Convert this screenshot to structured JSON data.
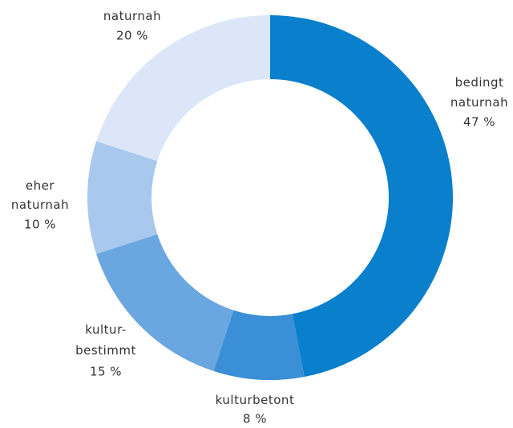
{
  "chart_data": {
    "type": "pie",
    "donut": true,
    "categories": [
      "bedingt naturnah",
      "kulturbetont",
      "kultur-bestimmt",
      "eher naturnah",
      "naturnah"
    ],
    "values": [
      47,
      8,
      15,
      10,
      20
    ],
    "value_labels": [
      "47 %",
      "8 %",
      "15 %",
      "10 %",
      "20 %"
    ],
    "colors": [
      "#0a7fcc",
      "#3a8fd6",
      "#6aa6df",
      "#a8c8ed",
      "#dbe7f8"
    ]
  }
}
